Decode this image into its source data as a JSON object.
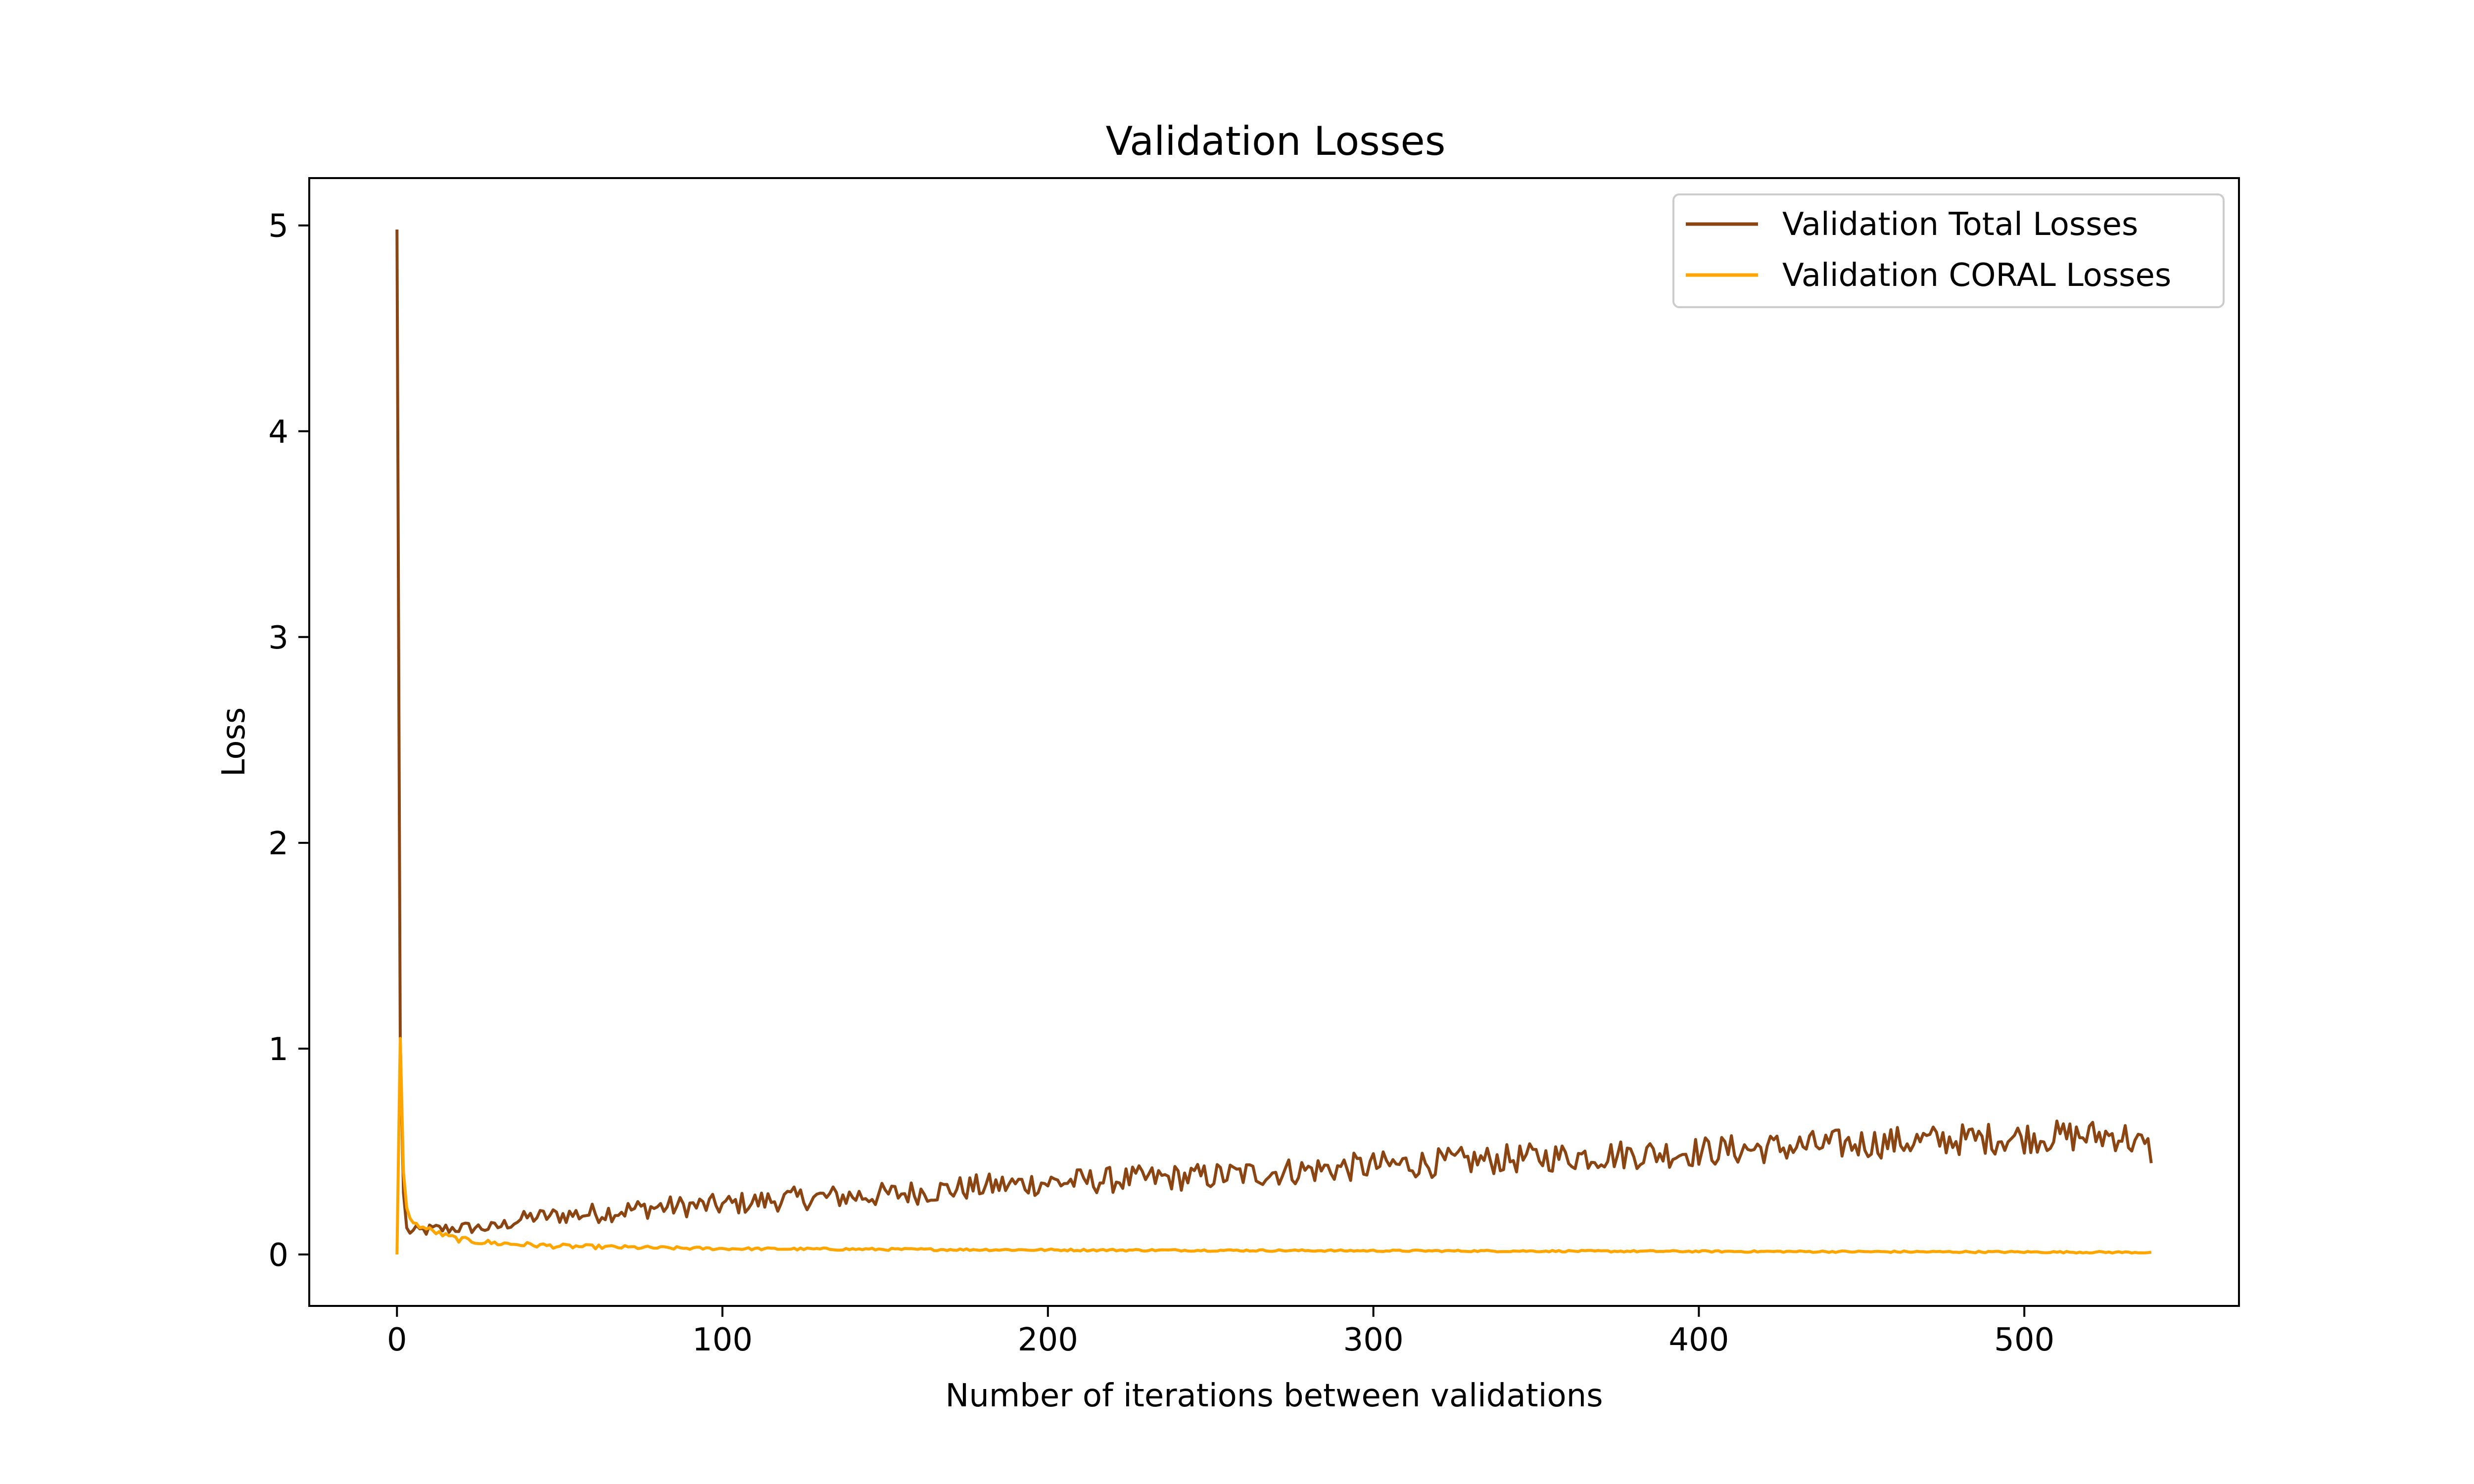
{
  "chart_data": {
    "type": "line",
    "title": "Validation Losses",
    "xlabel": "Number of iterations between validations",
    "ylabel": "Loss",
    "xlim": [
      -26.95,
      565.95
    ],
    "ylim": [
      -0.25,
      5.23
    ],
    "x_ticks": [
      0,
      100,
      200,
      300,
      400,
      500
    ],
    "y_ticks": [
      0,
      1,
      2,
      3,
      4,
      5
    ],
    "grid": false,
    "legend": "top-right",
    "n_points": 540,
    "series": [
      {
        "name": "Validation Total Losses",
        "color": "#8B4513",
        "keypoints": [
          [
            0,
            4.98
          ],
          [
            1,
            1.05
          ],
          [
            2,
            0.3
          ],
          [
            3,
            0.12
          ],
          [
            5,
            0.11
          ],
          [
            10,
            0.12
          ],
          [
            20,
            0.13
          ],
          [
            30,
            0.13
          ],
          [
            40,
            0.18
          ],
          [
            60,
            0.2
          ],
          [
            80,
            0.23
          ],
          [
            100,
            0.24
          ],
          [
            120,
            0.27
          ],
          [
            150,
            0.29
          ],
          [
            180,
            0.33
          ],
          [
            200,
            0.35
          ],
          [
            250,
            0.38
          ],
          [
            300,
            0.43
          ],
          [
            350,
            0.47
          ],
          [
            400,
            0.5
          ],
          [
            450,
            0.54
          ],
          [
            500,
            0.57
          ],
          [
            530,
            0.58
          ],
          [
            539,
            0.5
          ]
        ],
        "noise": [
          [
            0,
            0.03
          ],
          [
            30,
            0.03
          ],
          [
            60,
            0.05
          ],
          [
            150,
            0.06
          ],
          [
            300,
            0.07
          ],
          [
            539,
            0.08
          ]
        ]
      },
      {
        "name": "Validation CORAL Losses",
        "color": "#FFA500",
        "keypoints": [
          [
            0,
            0.0
          ],
          [
            1,
            1.05
          ],
          [
            2,
            0.4
          ],
          [
            3,
            0.22
          ],
          [
            5,
            0.15
          ],
          [
            10,
            0.12
          ],
          [
            15,
            0.09
          ],
          [
            20,
            0.07
          ],
          [
            30,
            0.055
          ],
          [
            50,
            0.04
          ],
          [
            80,
            0.032
          ],
          [
            100,
            0.028
          ],
          [
            150,
            0.025
          ],
          [
            200,
            0.022
          ],
          [
            300,
            0.018
          ],
          [
            400,
            0.015
          ],
          [
            500,
            0.012
          ],
          [
            539,
            0.01
          ]
        ],
        "noise": [
          [
            0,
            0.01
          ],
          [
            20,
            0.015
          ],
          [
            40,
            0.012
          ],
          [
            100,
            0.006
          ],
          [
            300,
            0.004
          ],
          [
            539,
            0.004
          ]
        ]
      }
    ]
  }
}
